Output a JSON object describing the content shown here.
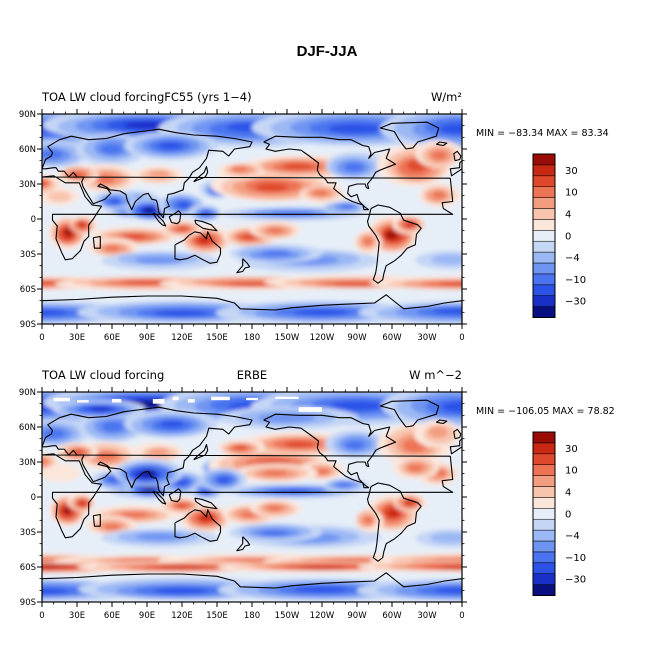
{
  "figure": {
    "title": "DJF-JJA"
  },
  "colors": {
    "levels": [
      "#0a0f80",
      "#1a2fc8",
      "#2c52e8",
      "#4a74ef",
      "#6f95f2",
      "#9bb8f4",
      "#c5d6f5",
      "#e6eef8",
      "#fbe6dc",
      "#f8c4ae",
      "#f39d80",
      "#ec7354",
      "#e0482c",
      "#c92813",
      "#9a0c08"
    ]
  },
  "colorbar": {
    "labels": [
      {
        "text": "30",
        "level_index": 13
      },
      {
        "text": "10",
        "level_index": 11
      },
      {
        "text": "4",
        "level_index": 9
      },
      {
        "text": "0",
        "level_index": 7
      },
      {
        "text": "−4",
        "level_index": 5
      },
      {
        "text": "−10",
        "level_index": 3
      },
      {
        "text": "−30",
        "level_index": 1
      }
    ]
  },
  "axes": {
    "lat_labels": [
      {
        "text": "90N",
        "lat": 90
      },
      {
        "text": "60N",
        "lat": 60
      },
      {
        "text": "30N",
        "lat": 30
      },
      {
        "text": "0",
        "lat": 0
      },
      {
        "text": "30S",
        "lat": -30
      },
      {
        "text": "60S",
        "lat": -60
      },
      {
        "text": "90S",
        "lat": -90
      }
    ],
    "lon_labels": [
      {
        "text": "0",
        "lon": 0
      },
      {
        "text": "30E",
        "lon": 30
      },
      {
        "text": "60E",
        "lon": 60
      },
      {
        "text": "90E",
        "lon": 90
      },
      {
        "text": "120E",
        "lon": 120
      },
      {
        "text": "150E",
        "lon": 150
      },
      {
        "text": "180",
        "lon": 180
      },
      {
        "text": "150W",
        "lon": 210
      },
      {
        "text": "120W",
        "lon": 240
      },
      {
        "text": "90W",
        "lon": 270
      },
      {
        "text": "60W",
        "lon": 300
      },
      {
        "text": "30W",
        "lon": 330
      },
      {
        "text": "0",
        "lon": 360
      }
    ]
  },
  "panels": [
    {
      "id": "model",
      "title_left": "TOA LW cloud forcingFC55 (yrs 1−4)",
      "title_center": "",
      "units": "W/m²",
      "min_max": "MIN = −83.34  MAX =  83.34",
      "min": -83.34,
      "max": 83.34
    },
    {
      "id": "obs",
      "title_left": "TOA LW cloud forcing",
      "title_center": "ERBE",
      "units": "W  m^−2",
      "min_max": "MIN = −106.05  MAX =   78.82",
      "min": -106.05,
      "max": 78.82
    }
  ],
  "map_regions": [
    {
      "name": "northern-high-latitude",
      "value": "negative"
    },
    {
      "name": "southern-ocean-band",
      "value": "positive"
    },
    {
      "name": "antarctica",
      "value": "negative"
    },
    {
      "name": "southern-africa",
      "value": "positive"
    },
    {
      "name": "south-america",
      "value": "positive"
    },
    {
      "name": "north-pacific",
      "value": "positive"
    },
    {
      "name": "north-atlantic",
      "value": "positive"
    },
    {
      "name": "indian-ocean-south-asia",
      "value": "negative"
    }
  ]
}
